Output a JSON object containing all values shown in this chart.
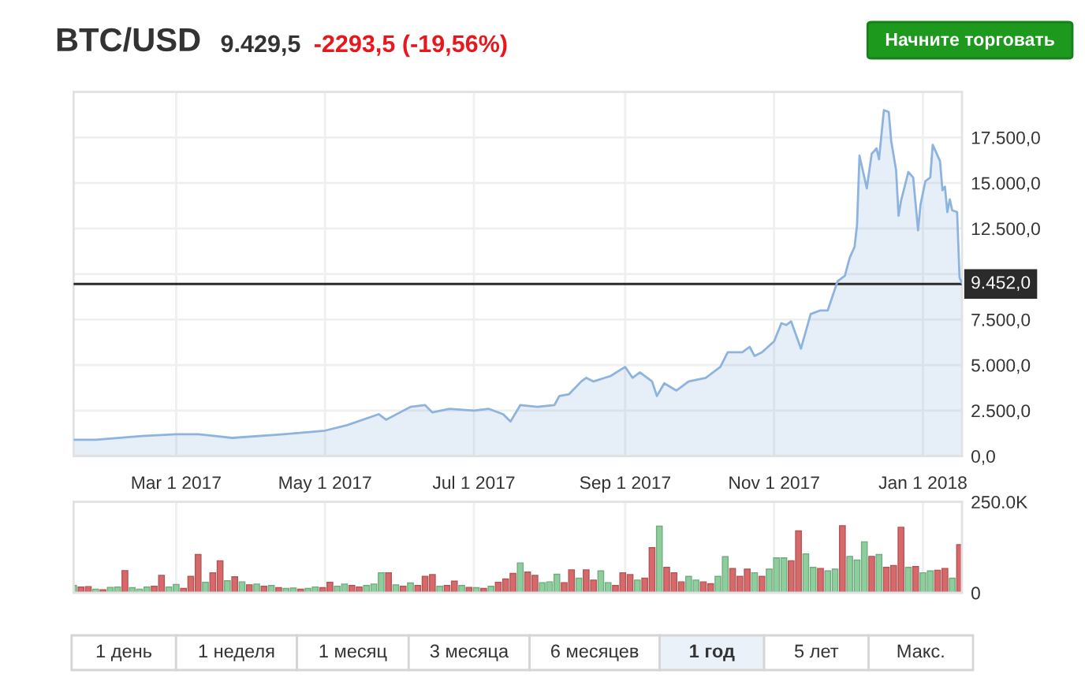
{
  "chart_data": [
    {
      "type": "area",
      "title": "BTC/USD",
      "subtitle": "9.429,5",
      "annotations": [
        "-2293,5 (-19,56%)",
        "Начните торговать"
      ],
      "x": [
        "2017-01-18",
        "2017-01-27",
        "2017-02-15",
        "2017-03-01",
        "2017-03-10",
        "2017-03-17",
        "2017-03-24",
        "2017-04-14",
        "2017-05-01",
        "2017-05-10",
        "2017-05-23",
        "2017-05-26",
        "2017-06-05",
        "2017-06-11",
        "2017-06-14",
        "2017-06-21",
        "2017-07-01",
        "2017-07-07",
        "2017-07-13",
        "2017-07-16",
        "2017-07-20",
        "2017-07-27",
        "2017-08-03",
        "2017-08-05",
        "2017-08-09",
        "2017-08-14",
        "2017-08-16",
        "2017-08-19",
        "2017-08-26",
        "2017-09-01",
        "2017-09-04",
        "2017-09-07",
        "2017-09-12",
        "2017-09-14",
        "2017-09-17",
        "2017-09-22",
        "2017-09-27",
        "2017-10-04",
        "2017-10-10",
        "2017-10-13",
        "2017-10-19",
        "2017-10-22",
        "2017-10-24",
        "2017-10-27",
        "2017-11-01",
        "2017-11-04",
        "2017-11-06",
        "2017-11-08",
        "2017-11-12",
        "2017-11-16",
        "2017-11-20",
        "2017-11-23",
        "2017-11-27",
        "2017-11-30",
        "2017-12-02",
        "2017-12-04",
        "2017-12-05",
        "2017-12-06",
        "2017-12-09",
        "2017-12-11",
        "2017-12-13",
        "2017-12-14",
        "2017-12-16",
        "2017-12-18",
        "2017-12-19",
        "2017-12-21",
        "2017-12-22",
        "2017-12-23",
        "2017-12-26",
        "2017-12-28",
        "2017-12-30",
        "2017-12-31",
        "2018-01-02",
        "2018-01-04",
        "2018-01-05",
        "2018-01-08",
        "2018-01-09",
        "2018-01-10",
        "2018-01-11",
        "2018-01-12",
        "2018-01-13",
        "2018-01-15",
        "2018-01-16",
        "2018-01-17"
      ],
      "series": [
        {
          "color": "#8db4de",
          "values": [
            900,
            900,
            1100,
            1200,
            1200,
            1100,
            1000,
            1200,
            1400,
            1700,
            2300,
            2000,
            2700,
            2800,
            2400,
            2600,
            2500,
            2600,
            2300,
            1900,
            2800,
            2700,
            2800,
            3300,
            3400,
            4100,
            4300,
            4100,
            4400,
            4900,
            4300,
            4600,
            4100,
            3300,
            4000,
            3600,
            4100,
            4300,
            4900,
            5700,
            5700,
            6000,
            5500,
            5700,
            6300,
            7300,
            7200,
            7400,
            5900,
            7800,
            8000,
            8000,
            9600,
            9900,
            10900,
            11500,
            12700,
            16500,
            14700,
            16600,
            16900,
            16300,
            19000,
            18900,
            17300,
            15700,
            13200,
            14000,
            15600,
            15300,
            12400,
            13800,
            15100,
            15300,
            17100,
            16200,
            14600,
            14800,
            13400,
            14100,
            13500,
            13400,
            9800,
            9500
          ]
        }
      ],
      "xlim": [
        "2017-01-18",
        "2018-01-17"
      ],
      "xticks": [
        {
          "value": "2017-03-01",
          "label": "Mar 1 2017"
        },
        {
          "value": "2017-05-01",
          "label": "May 1 2017"
        },
        {
          "value": "2017-07-01",
          "label": "Jul 1 2017"
        },
        {
          "value": "2017-09-01",
          "label": "Sep 1 2017"
        },
        {
          "value": "2017-11-01",
          "label": "Nov 1 2017"
        },
        {
          "value": "2018-01-01",
          "label": "Jan 1 2018"
        }
      ],
      "ylim": [
        0,
        20000
      ],
      "yticks": [
        {
          "value": 0,
          "label": "0,0"
        },
        {
          "value": 2500,
          "label": "2.500,0"
        },
        {
          "value": 5000,
          "label": "5.000,0"
        },
        {
          "value": 7500,
          "label": "7.500,0"
        },
        {
          "value": 10000,
          "label": null
        },
        {
          "value": 12500,
          "label": "12.500,0"
        },
        {
          "value": 15000,
          "label": "15.000,0"
        },
        {
          "value": 17500,
          "label": "17.500,0"
        }
      ],
      "ref_lines": [
        {
          "axis": "y",
          "value": 9452,
          "label": "9.452,0",
          "color": "#2b2b2b"
        }
      ],
      "grid": true
    },
    {
      "type": "bar",
      "annotations": [
        "1 день",
        "1 неделя",
        "1 месяц",
        "3 месяца",
        "6 месяцев",
        "1 год",
        "5 лет",
        "Макс."
      ],
      "x": [
        "2017-01-18",
        "2017-01-21",
        "2017-01-24",
        "2017-01-27",
        "2017-01-30",
        "2017-02-02",
        "2017-02-05",
        "2017-02-08",
        "2017-02-11",
        "2017-02-14",
        "2017-02-17",
        "2017-02-20",
        "2017-02-23",
        "2017-02-26",
        "2017-03-01",
        "2017-03-04",
        "2017-03-07",
        "2017-03-10",
        "2017-03-13",
        "2017-03-16",
        "2017-03-19",
        "2017-03-22",
        "2017-03-25",
        "2017-03-28",
        "2017-03-31",
        "2017-04-03",
        "2017-04-06",
        "2017-04-09",
        "2017-04-12",
        "2017-04-15",
        "2017-04-18",
        "2017-04-21",
        "2017-04-24",
        "2017-04-27",
        "2017-04-30",
        "2017-05-03",
        "2017-05-06",
        "2017-05-09",
        "2017-05-12",
        "2017-05-15",
        "2017-05-18",
        "2017-05-21",
        "2017-05-24",
        "2017-05-27",
        "2017-05-30",
        "2017-06-02",
        "2017-06-05",
        "2017-06-08",
        "2017-06-11",
        "2017-06-14",
        "2017-06-17",
        "2017-06-20",
        "2017-06-23",
        "2017-06-26",
        "2017-06-29",
        "2017-07-02",
        "2017-07-05",
        "2017-07-08",
        "2017-07-11",
        "2017-07-14",
        "2017-07-17",
        "2017-07-20",
        "2017-07-23",
        "2017-07-26",
        "2017-07-29",
        "2017-08-01",
        "2017-08-04",
        "2017-08-07",
        "2017-08-10",
        "2017-08-13",
        "2017-08-16",
        "2017-08-19",
        "2017-08-22",
        "2017-08-25",
        "2017-08-28",
        "2017-08-31",
        "2017-09-03",
        "2017-09-06",
        "2017-09-09",
        "2017-09-12",
        "2017-09-15",
        "2017-09-18",
        "2017-09-21",
        "2017-09-24",
        "2017-09-27",
        "2017-09-30",
        "2017-10-03",
        "2017-10-06",
        "2017-10-09",
        "2017-10-12",
        "2017-10-15",
        "2017-10-18",
        "2017-10-21",
        "2017-10-24",
        "2017-10-27",
        "2017-10-30",
        "2017-11-02",
        "2017-11-05",
        "2017-11-08",
        "2017-11-11",
        "2017-11-14",
        "2017-11-17",
        "2017-11-20",
        "2017-11-23",
        "2017-11-26",
        "2017-11-29",
        "2017-12-02",
        "2017-12-05",
        "2017-12-08",
        "2017-12-11",
        "2017-12-14",
        "2017-12-17",
        "2017-12-20",
        "2017-12-23",
        "2017-12-26",
        "2017-12-29",
        "2018-01-01",
        "2018-01-04",
        "2018-01-07",
        "2018-01-10",
        "2018-01-13",
        "2018-01-16"
      ],
      "values": [
        20000,
        16000,
        17000,
        10000,
        8000,
        15000,
        16000,
        61000,
        14000,
        10000,
        16000,
        18000,
        48000,
        16000,
        23000,
        12000,
        45000,
        105000,
        29000,
        55000,
        88000,
        33000,
        44000,
        30000,
        22000,
        24000,
        18000,
        20000,
        14000,
        12000,
        13000,
        10000,
        12000,
        16000,
        14000,
        29000,
        18000,
        24000,
        20000,
        16000,
        20000,
        24000,
        55000,
        55000,
        22000,
        18000,
        27000,
        20000,
        45000,
        50000,
        18000,
        20000,
        32000,
        20000,
        15000,
        14000,
        12000,
        18000,
        29000,
        38000,
        53000,
        82000,
        57000,
        48000,
        28000,
        30000,
        51000,
        28000,
        63000,
        40000,
        63000,
        35000,
        60000,
        28000,
        20000,
        55000,
        50000,
        35000,
        40000,
        124000,
        183000,
        70000,
        55000,
        30000,
        45000,
        35000,
        30000,
        25000,
        45000,
        99000,
        67000,
        45000,
        65000,
        55000,
        45000,
        65000,
        96000,
        96000,
        88000,
        170000,
        107000,
        70000,
        67000,
        60000,
        65000,
        184000,
        100000,
        90000,
        140000,
        100000,
        105000,
        70000,
        75000,
        180000,
        70000,
        72000,
        55000,
        60000,
        62000,
        67000,
        40000,
        132000
      ],
      "colors": [
        "#8ccf9c",
        "#d8696a",
        "#d8696a",
        "#8ccf9c",
        "#d8696a",
        "#8ccf9c",
        "#8ccf9c",
        "#d8696a",
        "#8ccf9c",
        "#8ccf9c",
        "#8ccf9c",
        "#d8696a",
        "#d8696a",
        "#8ccf9c",
        "#8ccf9c",
        "#d8696a",
        "#d8696a",
        "#d8696a",
        "#8ccf9c",
        "#d8696a",
        "#d8696a",
        "#8ccf9c",
        "#d8696a",
        "#8ccf9c",
        "#d8696a",
        "#8ccf9c",
        "#d8696a",
        "#8ccf9c",
        "#d8696a",
        "#8ccf9c",
        "#8ccf9c",
        "#d8696a",
        "#8ccf9c",
        "#8ccf9c",
        "#d8696a",
        "#d8696a",
        "#8ccf9c",
        "#8ccf9c",
        "#d8696a",
        "#d8696a",
        "#8ccf9c",
        "#8ccf9c",
        "#8ccf9c",
        "#d8696a",
        "#8ccf9c",
        "#d8696a",
        "#8ccf9c",
        "#d8696a",
        "#d8696a",
        "#d8696a",
        "#8ccf9c",
        "#d8696a",
        "#d8696a",
        "#8ccf9c",
        "#d8696a",
        "#8ccf9c",
        "#d8696a",
        "#8ccf9c",
        "#d8696a",
        "#d8696a",
        "#d8696a",
        "#8ccf9c",
        "#d8696a",
        "#d8696a",
        "#8ccf9c",
        "#8ccf9c",
        "#8ccf9c",
        "#d8696a",
        "#d8696a",
        "#8ccf9c",
        "#d8696a",
        "#d8696a",
        "#8ccf9c",
        "#8ccf9c",
        "#d8696a",
        "#d8696a",
        "#d8696a",
        "#8ccf9c",
        "#d8696a",
        "#d8696a",
        "#8ccf9c",
        "#d8696a",
        "#d8696a",
        "#d8696a",
        "#8ccf9c",
        "#8ccf9c",
        "#d8696a",
        "#d8696a",
        "#8ccf9c",
        "#8ccf9c",
        "#d8696a",
        "#d8696a",
        "#d8696a",
        "#8ccf9c",
        "#d8696a",
        "#8ccf9c",
        "#8ccf9c",
        "#8ccf9c",
        "#d8696a",
        "#d8696a",
        "#8ccf9c",
        "#8ccf9c",
        "#d8696a",
        "#8ccf9c",
        "#8ccf9c",
        "#d8696a",
        "#8ccf9c",
        "#8ccf9c",
        "#8ccf9c",
        "#d8696a",
        "#8ccf9c",
        "#d8696a",
        "#d8696a",
        "#d8696a",
        "#8ccf9c",
        "#d8696a",
        "#8ccf9c",
        "#8ccf9c",
        "#d8696a",
        "#d8696a",
        "#8ccf9c",
        "#d8696a"
      ],
      "xlim": [
        "2017-01-18",
        "2018-01-17"
      ],
      "xticks": [
        {
          "value": "2017-03-01",
          "label": null
        },
        {
          "value": "2017-05-01",
          "label": null
        },
        {
          "value": "2017-07-01",
          "label": null
        },
        {
          "value": "2017-09-01",
          "label": null
        },
        {
          "value": "2017-11-01",
          "label": null
        },
        {
          "value": "2018-01-01",
          "label": null
        }
      ],
      "ylim": [
        0,
        250000
      ],
      "yticks": [
        0,
        {
          "value": 250000,
          "label": "250.0K"
        }
      ],
      "tick_labels": "y",
      "grid": true
    }
  ]
}
